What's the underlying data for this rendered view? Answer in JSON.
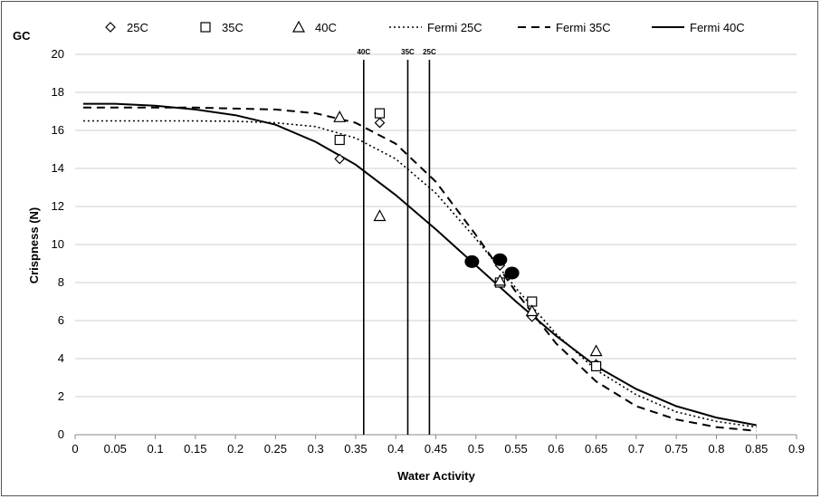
{
  "chart_data": {
    "type": "scatter",
    "corner_label": "GC",
    "xlabel": "Water Activity",
    "ylabel": "Crispness (N)",
    "xlim": [
      0,
      0.9
    ],
    "ylim": [
      0,
      20
    ],
    "x_ticks": [
      "0",
      "0.05",
      "0.1",
      "0.15",
      "0.2",
      "0.25",
      "0.3",
      "0.35",
      "0.4",
      "0.45",
      "0.5",
      "0.55",
      "0.6",
      "0.65",
      "0.7",
      "0.75",
      "0.8",
      "0.85",
      "0.9"
    ],
    "y_ticks": [
      "0",
      "2",
      "4",
      "6",
      "8",
      "10",
      "12",
      "14",
      "16",
      "18",
      "20"
    ],
    "grid": "horizontal",
    "legend_position": "top",
    "series": [
      {
        "name": "25C",
        "marker": "diamond",
        "points": [
          [
            0.33,
            14.5
          ],
          [
            0.38,
            16.4
          ],
          [
            0.53,
            8.9
          ],
          [
            0.57,
            6.2
          ],
          [
            0.65,
            3.7
          ]
        ]
      },
      {
        "name": "35C",
        "marker": "square",
        "points": [
          [
            0.33,
            15.5
          ],
          [
            0.38,
            16.9
          ],
          [
            0.53,
            8.0
          ],
          [
            0.57,
            7.0
          ],
          [
            0.65,
            3.6
          ]
        ]
      },
      {
        "name": "40C",
        "marker": "triangle",
        "points": [
          [
            0.33,
            16.7
          ],
          [
            0.38,
            11.5
          ],
          [
            0.53,
            8.1
          ],
          [
            0.57,
            6.5
          ],
          [
            0.65,
            4.4
          ]
        ]
      }
    ],
    "fits": [
      {
        "name": "Fermi 25C",
        "style": "dotted",
        "points": [
          [
            0.01,
            16.5
          ],
          [
            0.05,
            16.5
          ],
          [
            0.1,
            16.5
          ],
          [
            0.15,
            16.5
          ],
          [
            0.2,
            16.48
          ],
          [
            0.25,
            16.4
          ],
          [
            0.3,
            16.2
          ],
          [
            0.35,
            15.6
          ],
          [
            0.4,
            14.5
          ],
          [
            0.45,
            12.7
          ],
          [
            0.5,
            10.3
          ],
          [
            0.55,
            7.7
          ],
          [
            0.6,
            5.3
          ],
          [
            0.65,
            3.4
          ],
          [
            0.7,
            2.1
          ],
          [
            0.75,
            1.2
          ],
          [
            0.8,
            0.7
          ],
          [
            0.85,
            0.4
          ]
        ]
      },
      {
        "name": "Fermi 35C",
        "style": "dashed",
        "points": [
          [
            0.01,
            17.2
          ],
          [
            0.05,
            17.2
          ],
          [
            0.1,
            17.2
          ],
          [
            0.15,
            17.2
          ],
          [
            0.2,
            17.15
          ],
          [
            0.25,
            17.1
          ],
          [
            0.3,
            16.9
          ],
          [
            0.35,
            16.4
          ],
          [
            0.4,
            15.3
          ],
          [
            0.45,
            13.3
          ],
          [
            0.5,
            10.5
          ],
          [
            0.55,
            7.5
          ],
          [
            0.6,
            4.8
          ],
          [
            0.65,
            2.8
          ],
          [
            0.7,
            1.5
          ],
          [
            0.75,
            0.8
          ],
          [
            0.8,
            0.4
          ],
          [
            0.85,
            0.2
          ]
        ]
      },
      {
        "name": "Fermi 40C",
        "style": "solid",
        "points": [
          [
            0.01,
            17.4
          ],
          [
            0.05,
            17.4
          ],
          [
            0.1,
            17.3
          ],
          [
            0.15,
            17.1
          ],
          [
            0.2,
            16.8
          ],
          [
            0.25,
            16.3
          ],
          [
            0.3,
            15.4
          ],
          [
            0.35,
            14.2
          ],
          [
            0.4,
            12.6
          ],
          [
            0.45,
            10.8
          ],
          [
            0.5,
            8.9
          ],
          [
            0.55,
            7.0
          ],
          [
            0.6,
            5.2
          ],
          [
            0.65,
            3.6
          ],
          [
            0.7,
            2.4
          ],
          [
            0.75,
            1.5
          ],
          [
            0.8,
            0.9
          ],
          [
            0.85,
            0.5
          ]
        ]
      }
    ],
    "critical_points": [
      [
        0.495,
        9.1
      ],
      [
        0.53,
        9.2
      ],
      [
        0.545,
        8.5
      ]
    ],
    "vertical_lines": [
      {
        "label": "40C",
        "x": 0.36
      },
      {
        "label": "35C",
        "x": 0.415
      },
      {
        "label": "25C",
        "x": 0.442
      }
    ]
  }
}
